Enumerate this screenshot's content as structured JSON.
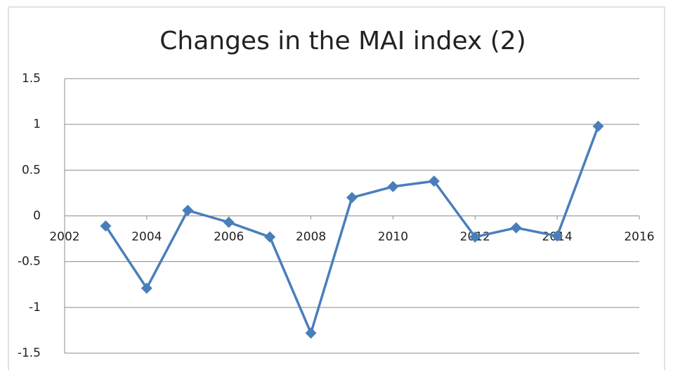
{
  "chart_data": {
    "type": "line",
    "title": "Changes in the MAI index (2)",
    "x": [
      2003,
      2004,
      2005,
      2006,
      2007,
      2008,
      2009,
      2010,
      2011,
      2012,
      2013,
      2014,
      2015
    ],
    "values": [
      -0.11,
      -0.79,
      0.06,
      -0.07,
      -0.23,
      -1.28,
      0.2,
      0.32,
      0.38,
      -0.23,
      -0.13,
      -0.22,
      0.98
    ],
    "color": "#4a7ebb",
    "xlim": [
      2002,
      2016
    ],
    "xticks": [
      2002,
      2004,
      2006,
      2008,
      2010,
      2012,
      2014,
      2016
    ],
    "ylim": [
      -1.5,
      1.5
    ],
    "yticks": [
      1.5,
      1,
      0.5,
      0,
      -0.5,
      -1,
      -1.5
    ],
    "grid": true
  }
}
